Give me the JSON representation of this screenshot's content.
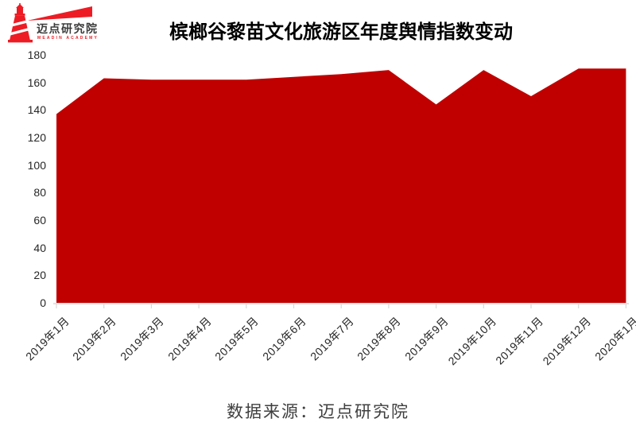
{
  "logo": {
    "name": "迈点研究院",
    "subtitle": "MEADIN ACADEMY",
    "icon": "lighthouse-icon",
    "color": "#ed1c24"
  },
  "source": "数据来源：迈点研究院",
  "chart_data": {
    "type": "area",
    "title": "槟榔谷黎苗文化旅游区年度舆情指数变动",
    "categories": [
      "2019年1月",
      "2019年2月",
      "2019年3月",
      "2019年4月",
      "2019年5月",
      "2019年6月",
      "2019年7月",
      "2019年8月",
      "2019年9月",
      "2019年10月",
      "2019年11月",
      "2019年12月",
      "2020年1月"
    ],
    "values": [
      137,
      163,
      162,
      162,
      162,
      164,
      166,
      169,
      144,
      169,
      150,
      170,
      170
    ],
    "xlabel": "",
    "ylabel": "",
    "ylim": [
      0,
      180
    ],
    "ytick_step": 20,
    "grid": false,
    "legend": "none",
    "fill_color": "#c00000",
    "axis_color": "#d9d9d9",
    "tick_label_color": "#262626"
  }
}
